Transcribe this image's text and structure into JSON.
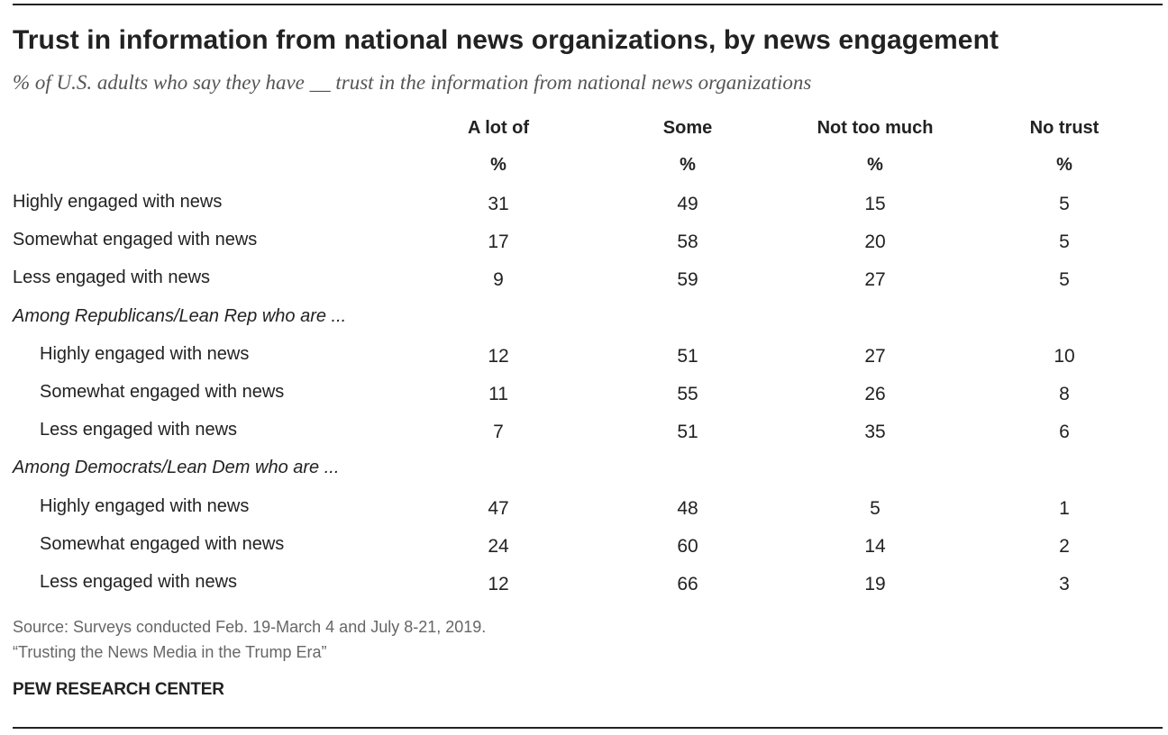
{
  "title": "Trust in information from national news organizations, by news engagement",
  "subtitle": "% of U.S. adults who say they have __ trust in the information from national news organizations",
  "chart_data": {
    "type": "table",
    "columns": [
      "A lot of",
      "Some",
      "Not too much",
      "No trust"
    ],
    "units": [
      "%",
      "%",
      "%",
      "%"
    ],
    "rows": [
      {
        "label": "Highly engaged with news",
        "kind": "total",
        "values": [
          31,
          49,
          15,
          5
        ]
      },
      {
        "label": "Somewhat engaged with news",
        "kind": "total",
        "values": [
          17,
          58,
          20,
          5
        ]
      },
      {
        "label": "Less engaged with news",
        "kind": "total",
        "values": [
          9,
          59,
          27,
          5
        ]
      },
      {
        "label": "Among Republicans/Lean Rep who are ...",
        "kind": "group",
        "values": []
      },
      {
        "label": "Highly engaged with news",
        "kind": "sub",
        "values": [
          12,
          51,
          27,
          10
        ]
      },
      {
        "label": "Somewhat engaged with news",
        "kind": "sub",
        "values": [
          11,
          55,
          26,
          8
        ]
      },
      {
        "label": "Less engaged with news",
        "kind": "sub",
        "values": [
          7,
          51,
          35,
          6
        ]
      },
      {
        "label": "Among Democrats/Lean Dem who are ...",
        "kind": "group",
        "values": []
      },
      {
        "label": "Highly engaged with news",
        "kind": "sub",
        "values": [
          47,
          48,
          5,
          1
        ]
      },
      {
        "label": "Somewhat engaged with news",
        "kind": "sub",
        "values": [
          24,
          60,
          14,
          2
        ]
      },
      {
        "label": "Less engaged with news",
        "kind": "sub",
        "values": [
          12,
          66,
          19,
          3
        ]
      }
    ]
  },
  "source_lines": [
    "Source: Surveys conducted Feb. 19-March 4 and July 8-21, 2019.",
    "“Trusting the News Media in the Trump Era”"
  ],
  "brand": "PEW RESEARCH CENTER",
  "colors": {
    "text": "#222222",
    "subtitle": "#555555",
    "source": "#666666",
    "rule": "#222222"
  }
}
